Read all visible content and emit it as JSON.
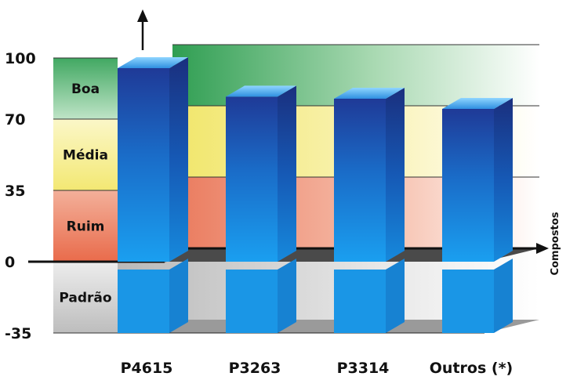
{
  "chart_data": {
    "type": "bar",
    "categories": [
      "P4615",
      "P3263",
      "P3314",
      "Outros (*)"
    ],
    "values": [
      95,
      81,
      80,
      75
    ],
    "negative_base": -35,
    "yticks": [
      100,
      70,
      35,
      0,
      -35
    ],
    "ylim": [
      -35,
      100
    ],
    "xlabel": "Compostos",
    "bands": [
      {
        "label": "Boa",
        "from": 70,
        "to": 100,
        "color": "#3aa85a"
      },
      {
        "label": "Média",
        "from": 35,
        "to": 70,
        "color": "#f5ec80"
      },
      {
        "label": "Ruim",
        "from": 0,
        "to": 35,
        "color": "#ee7f62"
      },
      {
        "label": "Padrão",
        "from": -35,
        "to": 0,
        "color": "#c8c8c8"
      }
    ],
    "bar_color": "#1a8fe0"
  }
}
